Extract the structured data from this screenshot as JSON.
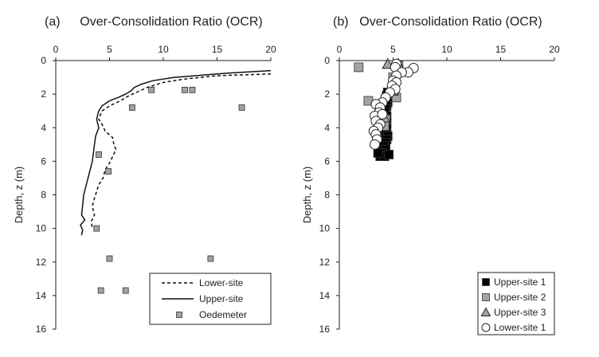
{
  "chart_data": [
    {
      "type": "line",
      "panel_label": "(a)",
      "title": "Over-Consolidation Ratio (OCR)",
      "xlabel": "",
      "ylabel": "Depth, z (m)",
      "xlim": [
        0,
        20
      ],
      "ylim": [
        0,
        16
      ],
      "x_ticks": [
        "0",
        "5",
        "10",
        "15",
        "20"
      ],
      "y_ticks": [
        "0",
        "2",
        "4",
        "6",
        "8",
        "10",
        "12",
        "14",
        "16"
      ],
      "legend": {
        "position": "bottom-right",
        "entries": [
          "Lower-site",
          "Upper-site",
          "Oedemeter"
        ]
      },
      "series": [
        {
          "name": "Lower-site",
          "style": "dashed",
          "points": [
            [
              20,
              0.8
            ],
            [
              15,
              0.9
            ],
            [
              12,
              1.1
            ],
            [
              10,
              1.3
            ],
            [
              8.5,
              1.6
            ],
            [
              7.5,
              1.9
            ],
            [
              6.8,
              2.1
            ],
            [
              6.0,
              2.4
            ],
            [
              5.0,
              2.7
            ],
            [
              4.3,
              3.0
            ],
            [
              4.0,
              3.5
            ],
            [
              4.3,
              3.8
            ],
            [
              4.6,
              4.2
            ],
            [
              5.3,
              4.6
            ],
            [
              5.4,
              5.0
            ],
            [
              5.6,
              5.3
            ],
            [
              5.3,
              5.7
            ],
            [
              5.0,
              6.1
            ],
            [
              4.6,
              6.5
            ],
            [
              4.4,
              7.0
            ],
            [
              4.0,
              7.4
            ],
            [
              3.8,
              7.8
            ],
            [
              3.6,
              8.2
            ],
            [
              3.4,
              8.7
            ],
            [
              3.6,
              9.2
            ],
            [
              3.3,
              9.6
            ],
            [
              3.4,
              10.0
            ]
          ]
        },
        {
          "name": "Upper-site",
          "style": "solid",
          "points": [
            [
              20,
              0.6
            ],
            [
              16,
              0.75
            ],
            [
              14,
              0.85
            ],
            [
              11,
              1.0
            ],
            [
              9,
              1.2
            ],
            [
              8,
              1.4
            ],
            [
              7.3,
              1.6
            ],
            [
              7.0,
              1.8
            ],
            [
              6.5,
              2.0
            ],
            [
              5.8,
              2.2
            ],
            [
              5.0,
              2.4
            ],
            [
              4.3,
              2.7
            ],
            [
              4.0,
              3.0
            ],
            [
              3.8,
              3.5
            ],
            [
              4.0,
              4.0
            ],
            [
              3.7,
              4.5
            ],
            [
              3.6,
              5.0
            ],
            [
              3.5,
              5.5
            ],
            [
              3.4,
              6.0
            ],
            [
              3.2,
              6.5
            ],
            [
              3.0,
              7.0
            ],
            [
              2.8,
              7.5
            ],
            [
              2.6,
              8.0
            ],
            [
              2.5,
              8.6
            ],
            [
              2.4,
              9.2
            ],
            [
              2.7,
              9.5
            ],
            [
              2.3,
              9.8
            ],
            [
              2.5,
              10.1
            ],
            [
              2.4,
              10.4
            ]
          ]
        },
        {
          "name": "Oedemeter",
          "style": "markers",
          "marker": "square",
          "color": "#a3a3a3",
          "points": [
            [
              8.9,
              1.75
            ],
            [
              12.0,
              1.75
            ],
            [
              12.7,
              1.75
            ],
            [
              17.3,
              2.8
            ],
            [
              7.1,
              2.8
            ],
            [
              4.0,
              5.6
            ],
            [
              4.9,
              6.6
            ],
            [
              3.8,
              10.0
            ],
            [
              5.0,
              11.8
            ],
            [
              14.4,
              11.8
            ],
            [
              4.2,
              13.7
            ],
            [
              6.5,
              13.7
            ]
          ]
        }
      ]
    },
    {
      "type": "scatter",
      "panel_label": "(b)",
      "title": "Over-Consolidation Ratio (OCR)",
      "xlabel": "",
      "ylabel": "Depth, z (m)",
      "xlim": [
        0,
        20
      ],
      "ylim": [
        0,
        16
      ],
      "x_ticks": [
        "0",
        "5",
        "10",
        "15",
        "20"
      ],
      "y_ticks": [
        "0",
        "2",
        "4",
        "6",
        "8",
        "10",
        "12",
        "14",
        "16"
      ],
      "legend": {
        "position": "bottom-right",
        "entries": [
          "Upper-site 1",
          "Upper-site 2",
          "Upper-site 3",
          "Lower-site 1"
        ]
      },
      "series": [
        {
          "name": "Upper-site 1",
          "marker": "square",
          "color": "#000000",
          "points": [
            [
              4.5,
              1.9
            ],
            [
              4.4,
              2.1
            ],
            [
              4.3,
              2.3
            ],
            [
              4.5,
              2.5
            ],
            [
              4.4,
              2.7
            ],
            [
              4.3,
              2.9
            ],
            [
              4.2,
              3.1
            ],
            [
              4.4,
              3.3
            ],
            [
              4.2,
              3.5
            ],
            [
              4.4,
              3.7
            ],
            [
              4.3,
              3.9
            ],
            [
              4.4,
              4.1
            ],
            [
              4.3,
              4.3
            ],
            [
              4.5,
              4.5
            ],
            [
              4.4,
              4.7
            ],
            [
              4.3,
              4.9
            ],
            [
              4.1,
              5.1
            ],
            [
              4.3,
              5.3
            ],
            [
              4.0,
              5.5
            ],
            [
              3.8,
              5.7
            ],
            [
              4.2,
              5.7
            ],
            [
              4.6,
              5.6
            ],
            [
              3.6,
              5.5
            ]
          ]
        },
        {
          "name": "Upper-site 2",
          "marker": "square",
          "color": "#a3a3a3",
          "points": [
            [
              1.8,
              0.4
            ],
            [
              5.5,
              0.3
            ],
            [
              5.0,
              1.0
            ],
            [
              5.3,
              2.2
            ],
            [
              2.7,
              2.4
            ],
            [
              4.3,
              3.5
            ],
            [
              4.2,
              3.9
            ]
          ]
        },
        {
          "name": "Upper-site 3",
          "marker": "triangle",
          "color": "#a3a3a3",
          "points": [
            [
              4.5,
              0.2
            ],
            [
              5.5,
              0.2
            ],
            [
              5.0,
              1.8
            ],
            [
              4.2,
              3.4
            ]
          ]
        },
        {
          "name": "Lower-site 1",
          "marker": "circle",
          "color": "#ffffff",
          "points": [
            [
              5.3,
              0.2
            ],
            [
              6.9,
              0.45
            ],
            [
              6.4,
              0.7
            ],
            [
              5.2,
              0.4
            ],
            [
              5.8,
              0.7
            ],
            [
              5.3,
              0.9
            ],
            [
              5.0,
              1.2
            ],
            [
              5.3,
              1.3
            ],
            [
              4.9,
              1.5
            ],
            [
              5.2,
              1.7
            ],
            [
              4.7,
              1.9
            ],
            [
              4.3,
              2.2
            ],
            [
              4.0,
              2.5
            ],
            [
              3.4,
              2.6
            ],
            [
              3.8,
              2.8
            ],
            [
              3.7,
              3.1
            ],
            [
              3.3,
              3.3
            ],
            [
              4.0,
              3.2
            ],
            [
              3.4,
              3.6
            ],
            [
              3.8,
              3.8
            ],
            [
              3.6,
              4.0
            ],
            [
              3.2,
              4.2
            ],
            [
              3.4,
              4.4
            ],
            [
              3.5,
              4.7
            ],
            [
              3.3,
              5.0
            ]
          ]
        }
      ]
    }
  ]
}
